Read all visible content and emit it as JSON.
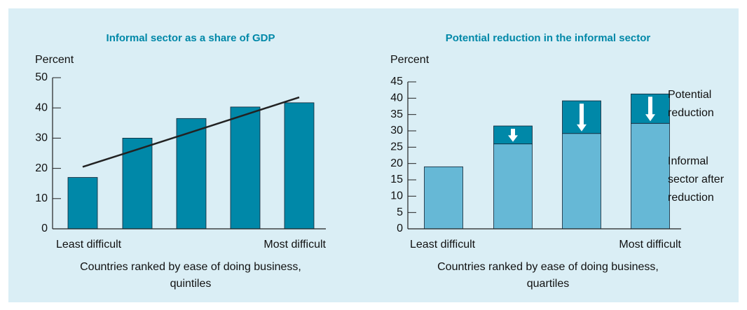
{
  "chart_data": [
    {
      "type": "bar",
      "title": "Informal sector as a share of GDP",
      "ylabel": "Percent",
      "xlabel": [
        "Countries ranked by ease of doing business,",
        "quintiles"
      ],
      "categories": [
        "Least difficult",
        null,
        null,
        null,
        "Most difficult"
      ],
      "series": [
        {
          "type": "bar",
          "color": "#0088a8",
          "values": [
            17,
            30,
            36.5,
            40.3,
            41.7
          ]
        },
        {
          "type": "line",
          "color": "#222222",
          "values": [
            20.5,
            26.25,
            32,
            37.75,
            43.5
          ]
        }
      ],
      "ylim": [
        0,
        50
      ],
      "yticks": [
        0,
        10,
        20,
        30,
        40,
        50
      ]
    },
    {
      "type": "stacked_bar",
      "title": "Potential reduction in the informal sector",
      "ylabel": "Percent",
      "xlabel": [
        "Countries ranked by ease of doing business,",
        "quartiles"
      ],
      "categories": [
        "Least difficult",
        null,
        null,
        "Most difficult"
      ],
      "series": [
        {
          "name": [
            "Informal",
            "sector after",
            "reduction"
          ],
          "color": "#66b8d6",
          "values": [
            19,
            26,
            29.2,
            32.3
          ]
        },
        {
          "name": [
            "Potential",
            "reduction"
          ],
          "color": "#0088a8",
          "values": [
            null,
            5.5,
            10,
            9
          ]
        }
      ],
      "ylim": [
        0,
        45
      ],
      "yticks": [
        0,
        5,
        10,
        15,
        20,
        25,
        30,
        35,
        40,
        45
      ]
    }
  ]
}
